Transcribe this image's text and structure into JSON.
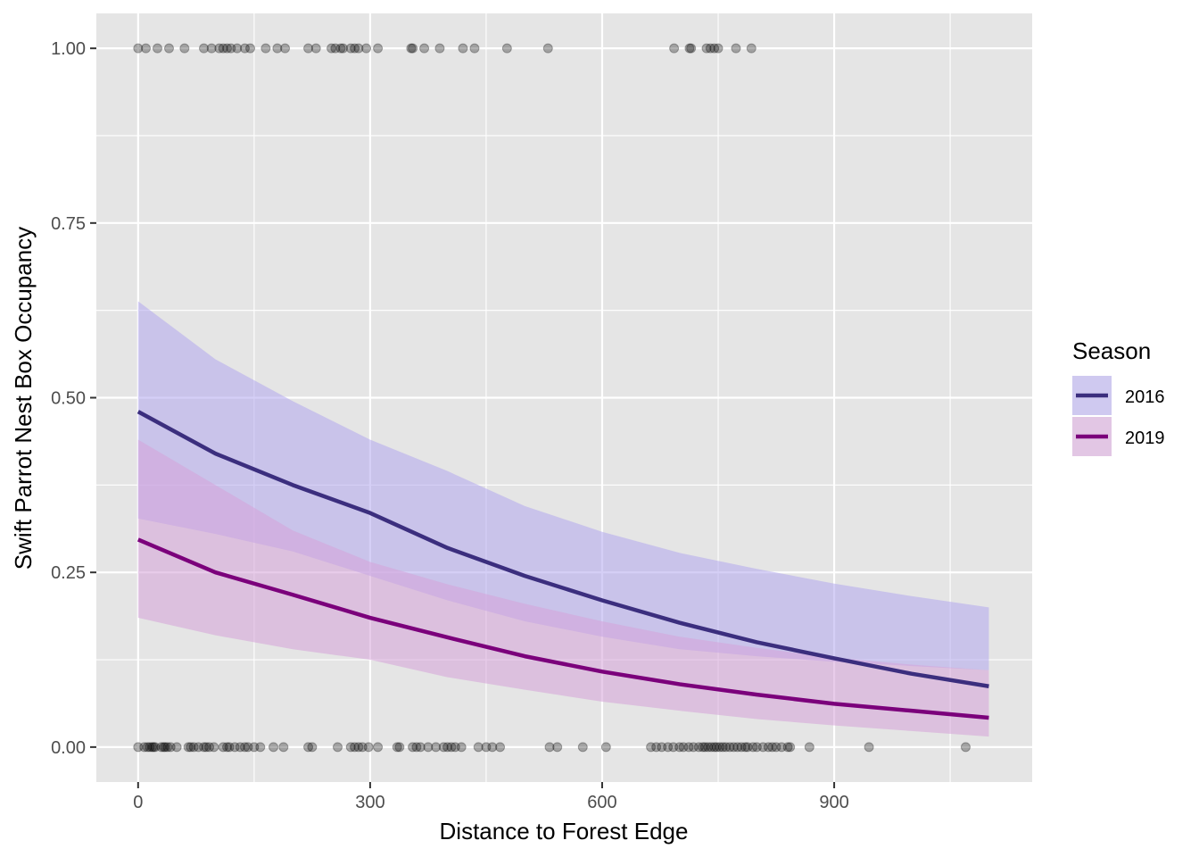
{
  "chart_data": {
    "type": "line",
    "xlabel": "Distance to Forest Edge",
    "ylabel": "Swift Parrot Nest Box Occupancy",
    "xlim": [
      -54,
      1156
    ],
    "ylim": [
      -0.05,
      1.05
    ],
    "x_ticks": [
      0,
      300,
      600,
      900
    ],
    "x_tick_labels": [
      "0",
      "300",
      "600",
      "900"
    ],
    "y_ticks": [
      0,
      0.25,
      0.5,
      0.75,
      1
    ],
    "y_tick_labels": [
      "0.00",
      "0.25",
      "0.50",
      "0.75",
      "1.00"
    ],
    "grid": true,
    "legend": {
      "title": "Season",
      "position": "right"
    },
    "series": [
      {
        "name": "2016",
        "color": "#3b2e7e",
        "ribbon_color": "#b3a8ee",
        "x": [
          0,
          100,
          200,
          300,
          400,
          500,
          600,
          700,
          800,
          900,
          1000,
          1100
        ],
        "fit": [
          0.48,
          0.42,
          0.375,
          0.335,
          0.285,
          0.245,
          0.21,
          0.178,
          0.15,
          0.127,
          0.105,
          0.087
        ],
        "lower": [
          0.327,
          0.305,
          0.28,
          0.245,
          0.21,
          0.18,
          0.158,
          0.14,
          0.13,
          0.122,
          0.116,
          0.11
        ],
        "upper": [
          0.638,
          0.555,
          0.495,
          0.44,
          0.395,
          0.345,
          0.308,
          0.278,
          0.255,
          0.234,
          0.216,
          0.2
        ]
      },
      {
        "name": "2019",
        "color": "#7b007b",
        "ribbon_color": "#d6a3d8",
        "x": [
          0,
          100,
          200,
          300,
          400,
          500,
          600,
          700,
          800,
          900,
          1000,
          1100
        ],
        "fit": [
          0.297,
          0.25,
          0.218,
          0.185,
          0.157,
          0.13,
          0.108,
          0.09,
          0.075,
          0.062,
          0.052,
          0.042
        ],
        "lower": [
          0.185,
          0.16,
          0.14,
          0.125,
          0.1,
          0.082,
          0.065,
          0.052,
          0.04,
          0.031,
          0.023,
          0.015
        ],
        "upper": [
          0.44,
          0.375,
          0.31,
          0.265,
          0.233,
          0.205,
          0.18,
          0.158,
          0.142,
          0.128,
          0.118,
          0.11
        ]
      }
    ],
    "observations": {
      "color": "#000000",
      "opacity": 0.3,
      "occupied_x": [
        0,
        10,
        25,
        40,
        60,
        85,
        95,
        105,
        110,
        115,
        120,
        128,
        138,
        145,
        165,
        180,
        190,
        220,
        230,
        250,
        255,
        262,
        265,
        275,
        280,
        285,
        295,
        310,
        353,
        355,
        370,
        390,
        420,
        435,
        477,
        530,
        693,
        713,
        715,
        735,
        740,
        745,
        750,
        773,
        793
      ],
      "unoccupied_x": [
        0,
        8,
        12,
        15,
        18,
        20,
        22,
        30,
        33,
        35,
        38,
        42,
        50,
        65,
        68,
        72,
        78,
        85,
        88,
        92,
        98,
        110,
        115,
        118,
        125,
        132,
        138,
        142,
        150,
        158,
        175,
        188,
        220,
        225,
        258,
        275,
        280,
        285,
        290,
        298,
        310,
        335,
        338,
        355,
        360,
        365,
        375,
        385,
        395,
        400,
        405,
        410,
        418,
        440,
        450,
        458,
        468,
        532,
        542,
        575,
        605,
        663,
        670,
        677,
        685,
        692,
        700,
        705,
        712,
        718,
        725,
        730,
        733,
        737,
        741,
        745,
        748,
        752,
        756,
        760,
        765,
        770,
        775,
        780,
        785,
        788,
        795,
        800,
        808,
        815,
        820,
        825,
        832,
        840,
        843,
        868,
        945,
        1070
      ]
    }
  }
}
